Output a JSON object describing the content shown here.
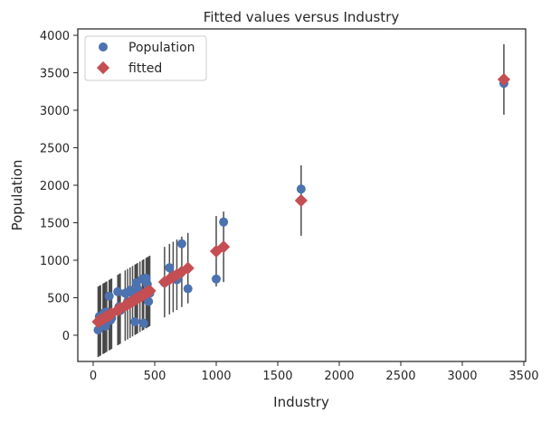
{
  "chart_data": {
    "type": "scatter",
    "title": "Fitted values versus Industry",
    "xlabel": "Industry",
    "ylabel": "Population",
    "xlim": [
      -125,
      3515
    ],
    "ylim": [
      -350,
      4085
    ],
    "xticks": [
      0,
      500,
      1000,
      1500,
      2000,
      2500,
      3000,
      3500
    ],
    "yticks": [
      0,
      500,
      1000,
      1500,
      2000,
      2500,
      3000,
      3500,
      4000
    ],
    "grid": false,
    "legend": {
      "placement": "top-left",
      "entries": [
        "Population",
        "fitted"
      ]
    },
    "colors": {
      "population": "#4c72b0",
      "fitted": "#c44e52",
      "errorbar": "#000000"
    },
    "x": [
      40,
      50,
      60,
      80,
      90,
      100,
      110,
      130,
      140,
      150,
      200,
      210,
      220,
      260,
      280,
      300,
      320,
      340,
      350,
      360,
      380,
      400,
      410,
      430,
      440,
      450,
      460,
      580,
      620,
      650,
      680,
      720,
      770,
      1000,
      1060,
      1690,
      3338
    ],
    "population": [
      70,
      250,
      150,
      200,
      300,
      120,
      310,
      520,
      200,
      230,
      580,
      380,
      330,
      560,
      450,
      600,
      550,
      180,
      700,
      620,
      500,
      750,
      160,
      760,
      680,
      450,
      560,
      700,
      900,
      800,
      740,
      1220,
      620,
      750,
      1510,
      1950,
      3360
    ],
    "fitted_intercept": 140,
    "fitted_slope": 0.98,
    "fitted_error": 470
  }
}
